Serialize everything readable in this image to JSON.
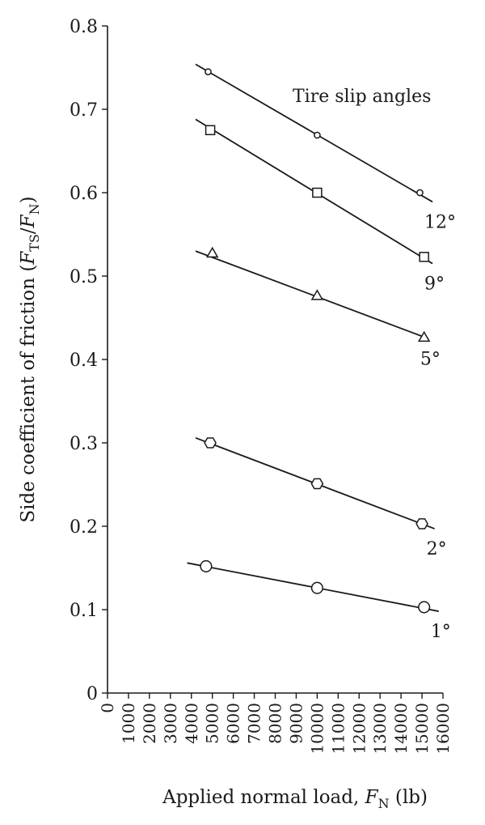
{
  "chart_data": {
    "type": "scatter",
    "xlabel_parts": {
      "prefix": "Applied normal load, ",
      "sym": "F",
      "sub": "N",
      "suffix": " (lb)"
    },
    "ylabel_parts": {
      "prefix": "Side coefficient of friction (",
      "sym1": "F",
      "sub1": "TS",
      "mid": "/",
      "sym2": "F",
      "sub2": "N",
      "suffix": ")"
    },
    "xlim": [
      0,
      16000
    ],
    "ylim": [
      0,
      0.8
    ],
    "x_ticks": [
      "0",
      "1000",
      "2000",
      "3000",
      "4000",
      "5000",
      "6000",
      "7000",
      "8000",
      "9000",
      "10000",
      "11000",
      "12000",
      "13000",
      "14000",
      "15000",
      "16000"
    ],
    "y_ticks": [
      "0",
      "0.1",
      "0.2",
      "0.3",
      "0.4",
      "0.5",
      "0.6",
      "0.7",
      "0.8"
    ],
    "annotation": "Tire slip angles",
    "grid": false,
    "series": [
      {
        "name": "12°",
        "marker": "small-circle",
        "points": [
          {
            "x": 4800,
            "y": 0.745
          },
          {
            "x": 10000,
            "y": 0.669
          },
          {
            "x": 14900,
            "y": 0.6
          }
        ],
        "fit": {
          "x": [
            4200,
            15500
          ],
          "y": [
            0.754,
            0.589
          ]
        }
      },
      {
        "name": "9°",
        "marker": "square",
        "points": [
          {
            "x": 4900,
            "y": 0.675
          },
          {
            "x": 10000,
            "y": 0.6
          },
          {
            "x": 15100,
            "y": 0.523
          }
        ],
        "fit": {
          "x": [
            4200,
            15500
          ],
          "y": [
            0.688,
            0.515
          ]
        }
      },
      {
        "name": "5°",
        "marker": "triangle",
        "points": [
          {
            "x": 5000,
            "y": 0.527
          },
          {
            "x": 10000,
            "y": 0.476
          },
          {
            "x": 15100,
            "y": 0.426
          }
        ],
        "fit": {
          "x": [
            4200,
            15300
          ],
          "y": [
            0.53,
            0.425
          ]
        }
      },
      {
        "name": "2°",
        "marker": "hexagon",
        "points": [
          {
            "x": 4900,
            "y": 0.3
          },
          {
            "x": 10000,
            "y": 0.251
          },
          {
            "x": 15000,
            "y": 0.203
          }
        ],
        "fit": {
          "x": [
            4200,
            15600
          ],
          "y": [
            0.306,
            0.197
          ]
        }
      },
      {
        "name": "1°",
        "marker": "large-circle",
        "points": [
          {
            "x": 4700,
            "y": 0.152
          },
          {
            "x": 10000,
            "y": 0.126
          },
          {
            "x": 15100,
            "y": 0.103
          }
        ],
        "fit": {
          "x": [
            3800,
            15800
          ],
          "y": [
            0.156,
            0.098
          ]
        }
      }
    ]
  }
}
